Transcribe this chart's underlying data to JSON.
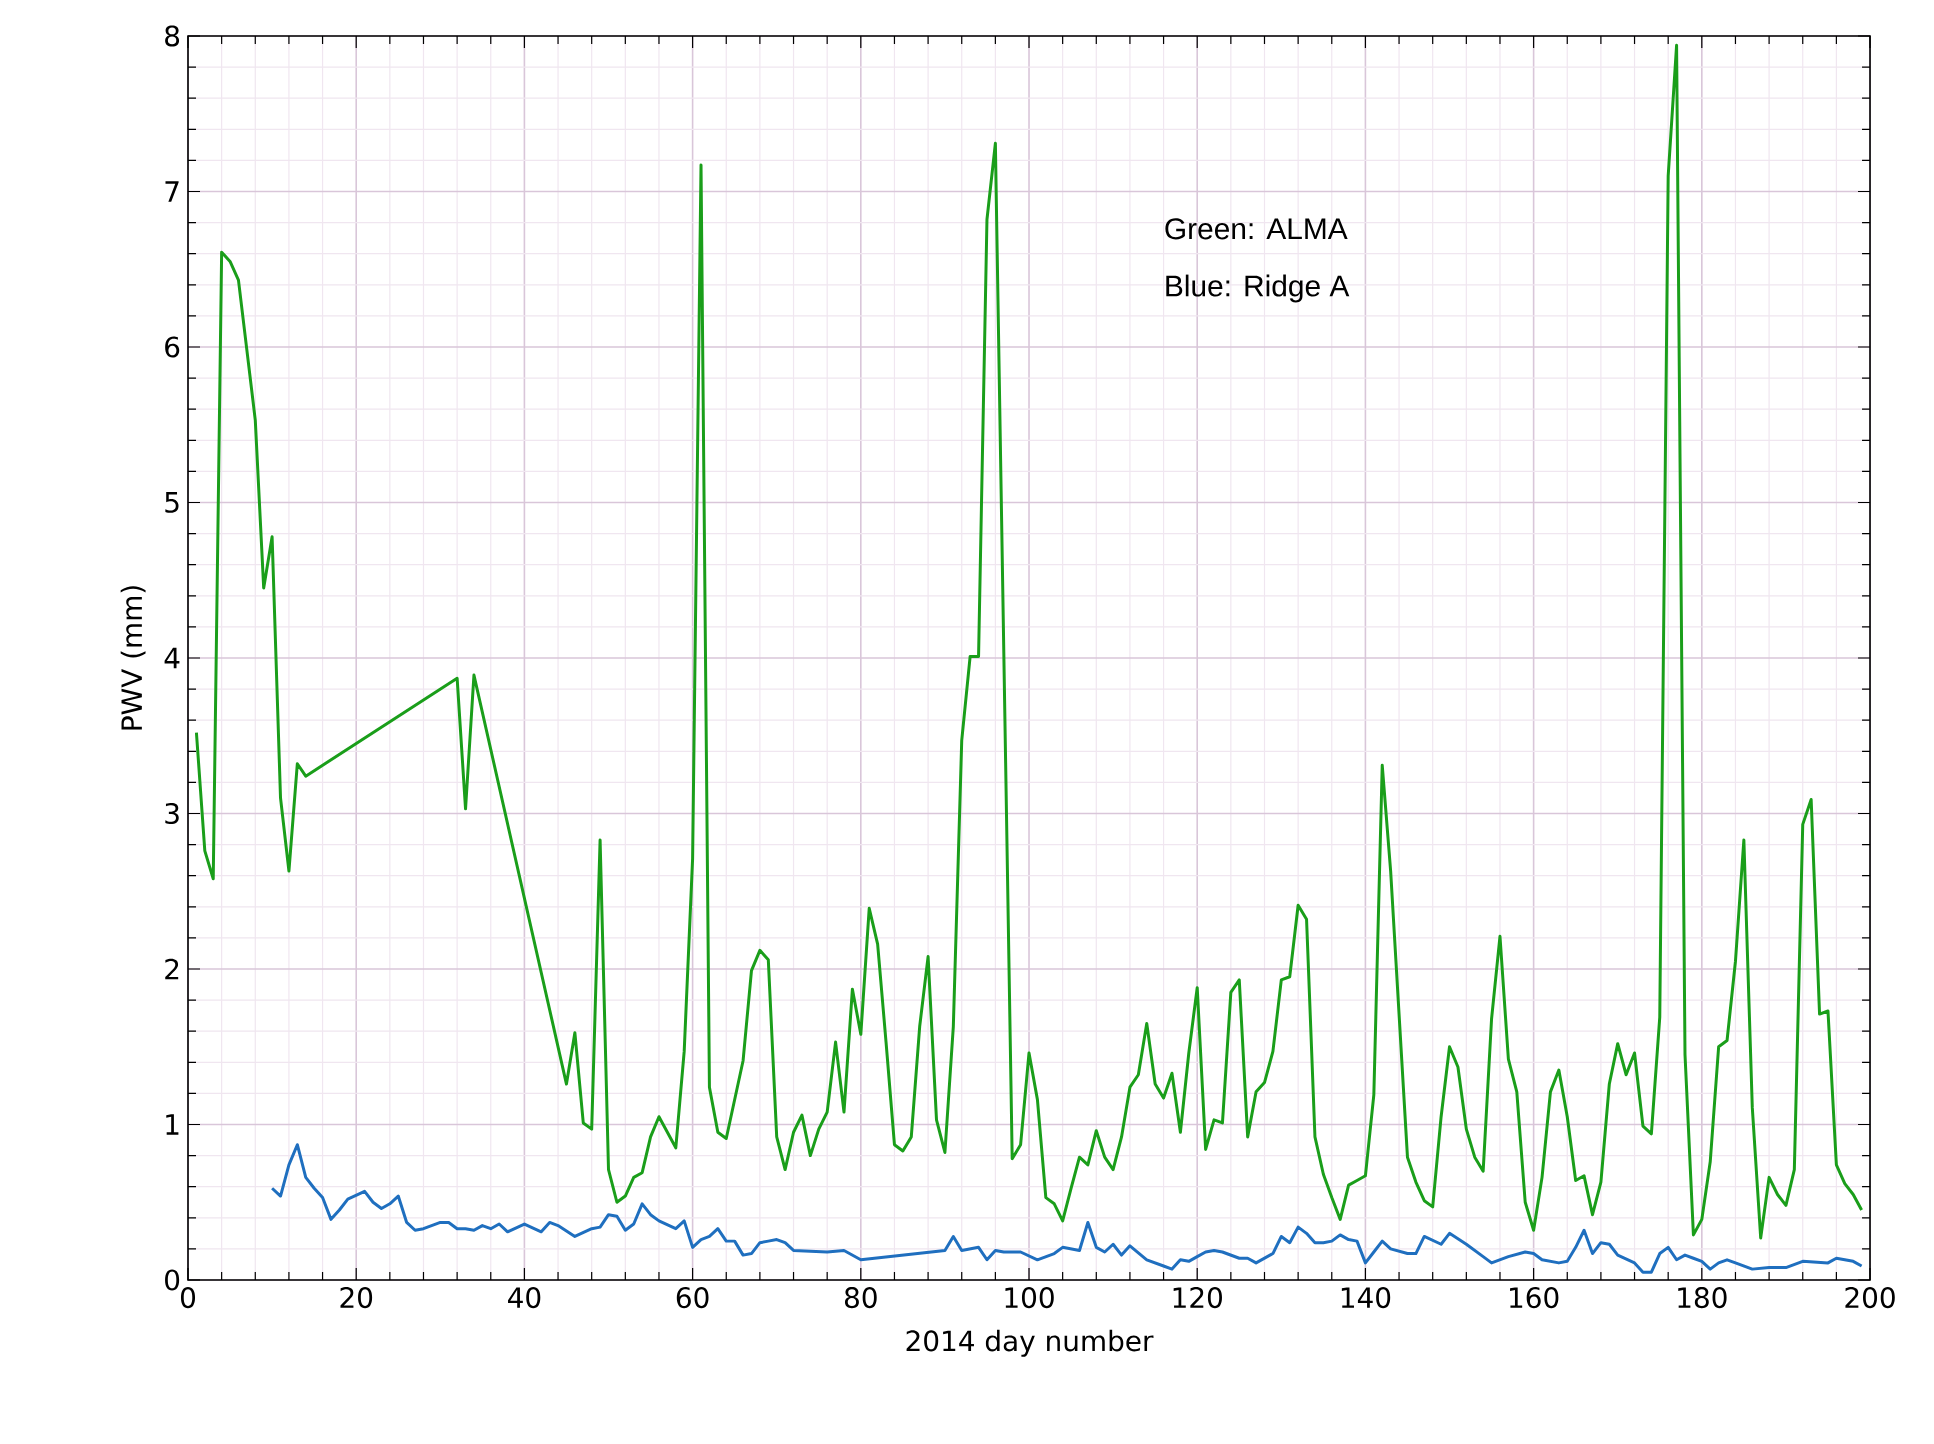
{
  "chart_data": {
    "type": "line",
    "xlabel": "2014 day number",
    "ylabel": "PWV (mm)",
    "annotations": [
      "Green: ALMA",
      "Blue: Ridge A"
    ],
    "xlim": [
      0,
      200
    ],
    "ylim": [
      0,
      8
    ],
    "xticks": [
      0,
      20,
      40,
      60,
      80,
      100,
      120,
      140,
      160,
      180,
      200
    ],
    "yticks": [
      0,
      1,
      2,
      3,
      4,
      5,
      6,
      7,
      8
    ],
    "grid": true,
    "marker": "none",
    "line_style": "solid",
    "series": [
      {
        "color": "#1a9e1a",
        "x": [
          1,
          2,
          3,
          4,
          5,
          6,
          8,
          9,
          10,
          11,
          12,
          13,
          14,
          32,
          33,
          34,
          45,
          46,
          47,
          48,
          49,
          50,
          51,
          52,
          53,
          54,
          55,
          56,
          58,
          59,
          60,
          61,
          62,
          63,
          64,
          66,
          67,
          68,
          69,
          70,
          71,
          72,
          73,
          74,
          75,
          76,
          77,
          78,
          79,
          80,
          81,
          82,
          83,
          84,
          85,
          86,
          87,
          88,
          89,
          90,
          91,
          92,
          93,
          94,
          95,
          96,
          98,
          99,
          100,
          101,
          102,
          103,
          104,
          105,
          106,
          107,
          108,
          109,
          110,
          111,
          112,
          113,
          114,
          115,
          116,
          117,
          118,
          119,
          120,
          121,
          122,
          123,
          124,
          125,
          126,
          127,
          128,
          129,
          130,
          131,
          132,
          133,
          134,
          135,
          136,
          137,
          138,
          139,
          140,
          141,
          142,
          143,
          144,
          145,
          146,
          147,
          148,
          149,
          150,
          151,
          152,
          153,
          154,
          155,
          156,
          157,
          158,
          159,
          160,
          161,
          162,
          163,
          164,
          165,
          166,
          167,
          168,
          169,
          170,
          171,
          172,
          173,
          174,
          175,
          176,
          177,
          178,
          179,
          180,
          181,
          182,
          183,
          184,
          185,
          186,
          187,
          188,
          189,
          190,
          191,
          192,
          193,
          194,
          195,
          196,
          197,
          198,
          199
        ],
        "values": [
          3.52,
          2.76,
          2.58,
          6.61,
          6.55,
          6.43,
          5.53,
          4.45,
          4.78,
          3.1,
          2.63,
          3.32,
          3.24,
          3.87,
          3.03,
          3.89,
          1.26,
          1.59,
          1.01,
          0.97,
          2.83,
          0.71,
          0.5,
          0.54,
          0.66,
          0.69,
          0.92,
          1.05,
          0.85,
          1.47,
          2.71,
          7.17,
          1.24,
          0.95,
          0.91,
          1.41,
          1.99,
          2.12,
          2.06,
          0.92,
          0.71,
          0.95,
          1.06,
          0.8,
          0.97,
          1.08,
          1.53,
          1.08,
          1.87,
          1.58,
          2.39,
          2.16,
          1.53,
          0.87,
          0.83,
          0.92,
          1.63,
          2.08,
          1.03,
          0.82,
          1.63,
          3.47,
          4.01,
          4.01,
          6.82,
          7.31,
          0.78,
          0.87,
          1.46,
          1.16,
          0.53,
          0.49,
          0.38,
          0.59,
          0.79,
          0.74,
          0.96,
          0.79,
          0.71,
          0.92,
          1.24,
          1.32,
          1.65,
          1.26,
          1.17,
          1.33,
          0.95,
          1.46,
          1.88,
          0.84,
          1.03,
          1.01,
          1.85,
          1.93,
          0.92,
          1.21,
          1.27,
          1.47,
          1.93,
          1.95,
          2.41,
          2.32,
          0.92,
          0.68,
          0.53,
          0.39,
          0.61,
          0.64,
          0.67,
          1.19,
          3.31,
          2.63,
          1.71,
          0.79,
          0.63,
          0.51,
          0.47,
          1.05,
          1.5,
          1.37,
          0.97,
          0.79,
          0.7,
          1.68,
          2.21,
          1.42,
          1.21,
          0.5,
          0.32,
          0.66,
          1.21,
          1.35,
          1.05,
          0.64,
          0.67,
          0.42,
          0.63,
          1.26,
          1.52,
          1.32,
          1.46,
          0.99,
          0.94,
          1.69,
          7.1,
          7.94,
          1.45,
          0.29,
          0.39,
          0.76,
          1.5,
          1.54,
          2.05,
          2.83,
          1.11,
          0.27,
          0.66,
          0.55,
          0.48,
          0.71,
          2.93,
          3.09,
          1.71,
          1.73,
          0.74,
          0.62,
          0.55,
          0.45
        ]
      },
      {
        "color": "#1f6fbf",
        "x": [
          10,
          11,
          12,
          13,
          14,
          15,
          16,
          17,
          18,
          19,
          21,
          22,
          23,
          24,
          25,
          26,
          27,
          28,
          30,
          31,
          32,
          33,
          34,
          35,
          36,
          37,
          38,
          40,
          42,
          43,
          44,
          46,
          48,
          49,
          50,
          51,
          52,
          53,
          54,
          55,
          56,
          58,
          59,
          60,
          61,
          62,
          63,
          64,
          65,
          66,
          67,
          68,
          69,
          70,
          71,
          72,
          76,
          78,
          80,
          90,
          91,
          92,
          94,
          95,
          96,
          97,
          98,
          99,
          101,
          103,
          104,
          106,
          107,
          108,
          109,
          110,
          111,
          112,
          114,
          116,
          117,
          118,
          119,
          120,
          121,
          122,
          123,
          125,
          126,
          127,
          129,
          130,
          131,
          132,
          133,
          134,
          135,
          136,
          137,
          138,
          139,
          140,
          141,
          142,
          143,
          145,
          146,
          147,
          149,
          150,
          152,
          154,
          155,
          157,
          159,
          160,
          161,
          163,
          164,
          165,
          166,
          167,
          168,
          169,
          170,
          172,
          173,
          174,
          175,
          176,
          177,
          178,
          179,
          180,
          181,
          182,
          183,
          184,
          186,
          188,
          190,
          192,
          195,
          196,
          198,
          199
        ],
        "values": [
          0.59,
          0.54,
          0.74,
          0.87,
          0.66,
          0.59,
          0.53,
          0.39,
          0.45,
          0.52,
          0.57,
          0.5,
          0.46,
          0.49,
          0.54,
          0.37,
          0.32,
          0.33,
          0.37,
          0.37,
          0.33,
          0.33,
          0.32,
          0.35,
          0.33,
          0.36,
          0.31,
          0.36,
          0.31,
          0.37,
          0.35,
          0.28,
          0.33,
          0.34,
          0.42,
          0.41,
          0.32,
          0.36,
          0.49,
          0.42,
          0.38,
          0.33,
          0.38,
          0.21,
          0.26,
          0.28,
          0.33,
          0.25,
          0.25,
          0.16,
          0.17,
          0.24,
          0.25,
          0.26,
          0.24,
          0.19,
          0.18,
          0.19,
          0.13,
          0.19,
          0.28,
          0.19,
          0.21,
          0.13,
          0.19,
          0.18,
          0.18,
          0.18,
          0.13,
          0.17,
          0.21,
          0.19,
          0.37,
          0.21,
          0.18,
          0.23,
          0.16,
          0.22,
          0.13,
          0.09,
          0.07,
          0.13,
          0.12,
          0.15,
          0.18,
          0.19,
          0.18,
          0.14,
          0.14,
          0.11,
          0.17,
          0.28,
          0.24,
          0.34,
          0.3,
          0.24,
          0.24,
          0.25,
          0.29,
          0.26,
          0.25,
          0.11,
          0.18,
          0.25,
          0.2,
          0.17,
          0.17,
          0.28,
          0.23,
          0.3,
          0.23,
          0.15,
          0.11,
          0.15,
          0.18,
          0.17,
          0.13,
          0.11,
          0.12,
          0.21,
          0.32,
          0.17,
          0.24,
          0.23,
          0.16,
          0.11,
          0.05,
          0.05,
          0.17,
          0.21,
          0.13,
          0.16,
          0.14,
          0.12,
          0.07,
          0.11,
          0.13,
          0.11,
          0.07,
          0.08,
          0.08,
          0.12,
          0.11,
          0.14,
          0.12,
          0.09
        ]
      }
    ]
  }
}
